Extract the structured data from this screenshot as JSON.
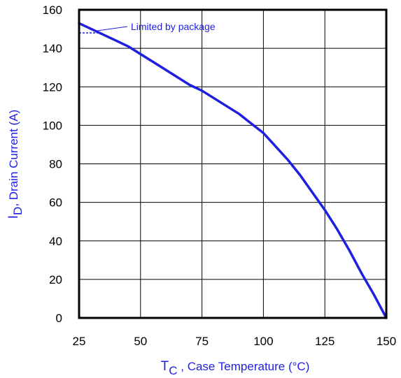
{
  "chart_data": {
    "type": "line",
    "xlabel": {
      "main": "T",
      "sub": "C",
      "rest": " , Case Temperature (°C)"
    },
    "ylabel": {
      "main": "I",
      "sub": "D",
      "rest": ",  Drain Current (A)"
    },
    "xlim": [
      25,
      150
    ],
    "ylim": [
      0,
      160
    ],
    "xticks": [
      25,
      50,
      75,
      100,
      125,
      150
    ],
    "yticks": [
      0,
      20,
      40,
      60,
      80,
      100,
      120,
      140,
      160
    ],
    "grid": true,
    "series": [
      {
        "x": [
          25,
          30,
          35,
          40,
          45,
          50,
          55,
          60,
          65,
          70,
          75,
          80,
          85,
          90,
          95,
          100,
          105,
          110,
          115,
          120,
          125,
          130,
          135,
          140,
          145,
          150
        ],
        "y": [
          153,
          150,
          147,
          144,
          141,
          137,
          133,
          129,
          125,
          121,
          118,
          114,
          110,
          106,
          101,
          96,
          89,
          82,
          74,
          65,
          56,
          46,
          35,
          23,
          12,
          0
        ]
      }
    ],
    "package_limit": {
      "label": "Limited by package",
      "value": 148,
      "x_end": 33
    },
    "colors": {
      "curve": "#1f1fe0",
      "text_accent": "#1f1fe0",
      "grid": "#000000"
    }
  }
}
